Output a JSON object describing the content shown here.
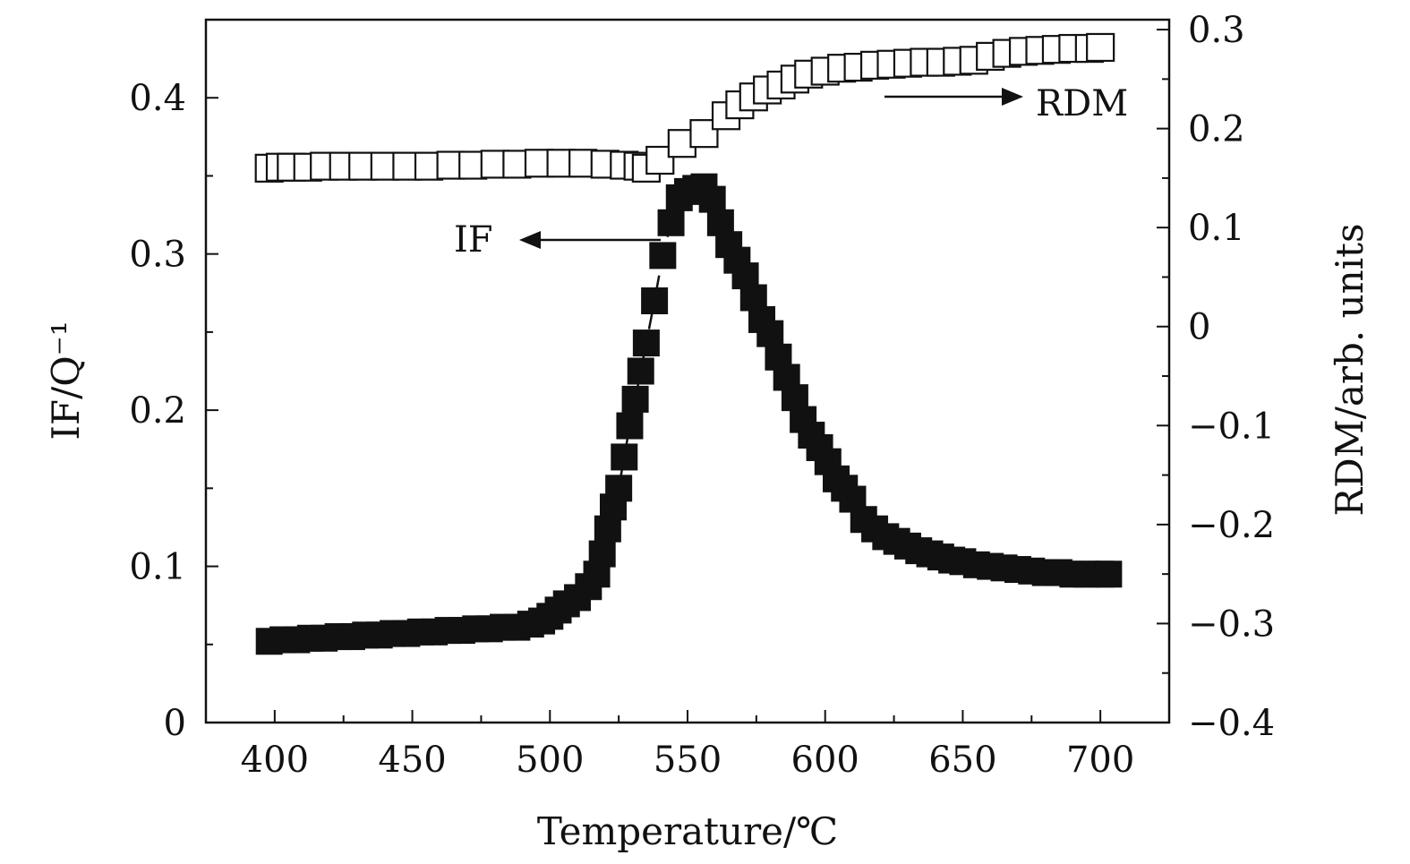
{
  "chart_data": {
    "type": "scatter",
    "xlabel": "Temperature/℃",
    "ylabel_left": "IF/Q⁻¹",
    "ylabel_right": "RDM/arb. units",
    "xlim": [
      375,
      725
    ],
    "ylim_left": [
      0,
      0.45
    ],
    "ylim_right": [
      -0.4,
      0.31
    ],
    "x_ticks": [
      "400",
      "450",
      "500",
      "550",
      "600",
      "650",
      "700"
    ],
    "x_tick_values": [
      400,
      450,
      500,
      550,
      600,
      650,
      700
    ],
    "y_left_ticks": [
      "0",
      "0.1",
      "0.2",
      "0.3",
      "0.4"
    ],
    "y_left_tick_values": [
      0,
      0.1,
      0.2,
      0.3,
      0.4
    ],
    "y_right_ticks": [
      "0.3",
      "0.2",
      "0.1",
      "0",
      "−0.1",
      "−0.2",
      "−0.3",
      "−0.4"
    ],
    "y_right_tick_values": [
      0.3,
      0.2,
      0.1,
      0,
      -0.1,
      -0.2,
      -0.3,
      -0.4
    ],
    "annotations": {
      "if_label": "IF",
      "rdm_label": "RDM"
    },
    "series": [
      {
        "name": "IF",
        "axis": "left",
        "marker": "filled-square",
        "x": [
          398,
          403,
          408,
          413,
          418,
          423,
          428,
          433,
          438,
          443,
          448,
          453,
          458,
          463,
          468,
          473,
          478,
          483,
          488,
          493,
          497,
          500,
          503,
          506,
          510,
          514,
          517,
          519,
          521,
          523,
          525,
          527,
          529,
          531,
          533,
          535,
          538,
          541,
          544,
          547,
          550,
          553,
          556,
          559,
          562,
          565,
          568,
          571,
          574,
          577,
          580,
          583,
          586,
          589,
          592,
          595,
          598,
          601,
          604,
          607,
          610,
          614,
          618,
          622,
          626,
          630,
          634,
          638,
          642,
          646,
          650,
          655,
          660,
          665,
          670,
          675,
          680,
          685,
          690,
          695,
          700,
          703
        ],
        "y": [
          0.052,
          0.053,
          0.053,
          0.054,
          0.054,
          0.055,
          0.055,
          0.056,
          0.056,
          0.057,
          0.057,
          0.058,
          0.058,
          0.059,
          0.059,
          0.06,
          0.06,
          0.061,
          0.061,
          0.063,
          0.065,
          0.068,
          0.072,
          0.076,
          0.08,
          0.087,
          0.095,
          0.108,
          0.124,
          0.138,
          0.15,
          0.17,
          0.19,
          0.207,
          0.225,
          0.243,
          0.27,
          0.299,
          0.32,
          0.336,
          0.34,
          0.342,
          0.343,
          0.335,
          0.32,
          0.306,
          0.296,
          0.286,
          0.272,
          0.258,
          0.249,
          0.234,
          0.221,
          0.208,
          0.194,
          0.184,
          0.176,
          0.167,
          0.156,
          0.15,
          0.143,
          0.13,
          0.124,
          0.119,
          0.116,
          0.113,
          0.11,
          0.108,
          0.106,
          0.104,
          0.103,
          0.101,
          0.1,
          0.099,
          0.098,
          0.097,
          0.096,
          0.096,
          0.095,
          0.095,
          0.095,
          0.095
        ]
      },
      {
        "name": "RDM",
        "axis": "right",
        "marker": "open-square",
        "x": [
          398,
          402,
          406,
          412,
          418,
          425,
          432,
          440,
          448,
          456,
          464,
          472,
          480,
          488,
          496,
          504,
          512,
          520,
          527,
          532,
          535,
          540,
          548,
          556,
          564,
          569,
          574,
          579,
          584,
          589,
          594,
          600,
          606,
          612,
          618,
          624,
          630,
          636,
          642,
          648,
          654,
          660,
          666,
          672,
          678,
          684,
          690,
          696,
          700
        ],
        "y": [
          0.16,
          0.161,
          0.161,
          0.161,
          0.162,
          0.162,
          0.162,
          0.162,
          0.162,
          0.162,
          0.163,
          0.163,
          0.164,
          0.164,
          0.165,
          0.165,
          0.165,
          0.164,
          0.163,
          0.162,
          0.16,
          0.168,
          0.185,
          0.195,
          0.213,
          0.224,
          0.232,
          0.239,
          0.244,
          0.25,
          0.255,
          0.258,
          0.261,
          0.262,
          0.264,
          0.265,
          0.266,
          0.267,
          0.267,
          0.268,
          0.269,
          0.273,
          0.276,
          0.278,
          0.279,
          0.28,
          0.281,
          0.281,
          0.282
        ]
      }
    ]
  }
}
